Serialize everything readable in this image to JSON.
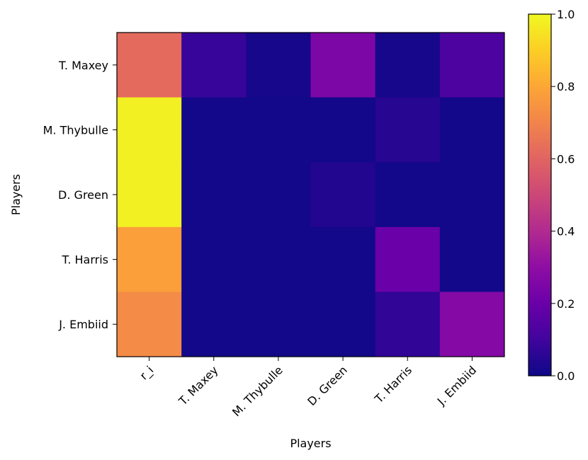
{
  "chart_data": {
    "type": "heatmap",
    "title": "",
    "xlabel": "Players",
    "ylabel": "Players",
    "x_categories": [
      "r_i",
      "T. Maxey",
      "M. Thybulle",
      "D. Green",
      "T. Harris",
      "J. Embiid"
    ],
    "y_categories": [
      "T. Maxey",
      "M. Thybulle",
      "D. Green",
      "T. Harris",
      "J. Embiid"
    ],
    "values": [
      [
        0.62,
        0.08,
        0.02,
        0.25,
        0.02,
        0.13
      ],
      [
        0.98,
        0.01,
        0.01,
        0.01,
        0.05,
        0.01
      ],
      [
        0.98,
        0.01,
        0.01,
        0.04,
        0.01,
        0.01
      ],
      [
        0.78,
        0.01,
        0.01,
        0.01,
        0.2,
        0.01
      ],
      [
        0.72,
        0.01,
        0.01,
        0.01,
        0.07,
        0.27
      ]
    ],
    "colormap": "plasma",
    "colorbar": {
      "range": [
        0.0,
        1.0
      ],
      "ticks": [
        "0.0",
        "0.2",
        "0.4",
        "0.6",
        "0.8",
        "1.0"
      ]
    }
  }
}
